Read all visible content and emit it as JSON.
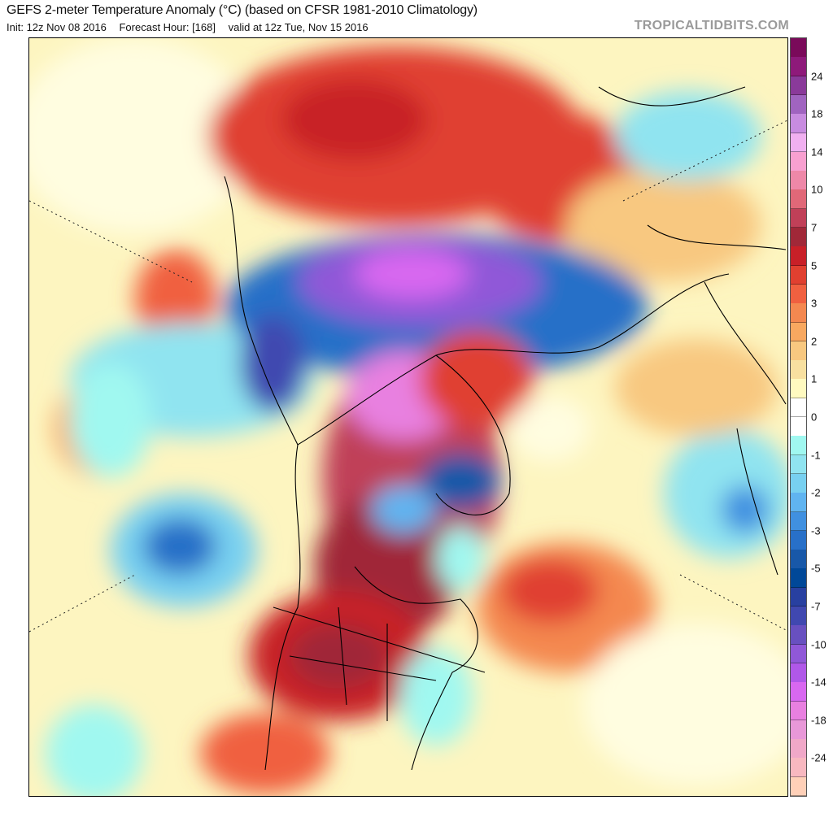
{
  "header": {
    "title": "GEFS 2-meter Temperature Anomaly (°C) (based on CFSR 1981-2010 Climatology)",
    "init": "Init: 12z Nov 08 2016",
    "forecast_hour": "Forecast Hour: [168]",
    "valid": "valid at 12z Tue, Nov 15 2016",
    "watermark": "TROPICALTIDBITS.COM"
  },
  "colorbar": {
    "colors": [
      "#7a0a5a",
      "#8e1a7a",
      "#8a3a9a",
      "#a064c0",
      "#c88ce0",
      "#f0b0f0",
      "#f8a0d0",
      "#ee88a8",
      "#e06878",
      "#c04058",
      "#a02838",
      "#c82028",
      "#e04030",
      "#f06040",
      "#f48850",
      "#f8a860",
      "#f8c880",
      "#f8e0a0",
      "#fffac0",
      "#ffffff",
      "#ffffff",
      "#a0f8f0",
      "#90e4f0",
      "#78d0f0",
      "#60b4f0",
      "#4090e0",
      "#2870c8",
      "#1858a8",
      "#004898",
      "#2840a0",
      "#4048b0",
      "#6850c0",
      "#9058d8",
      "#b058e8",
      "#d868f0",
      "#e880e0",
      "#e898d8",
      "#f0a8c8",
      "#f8b8c0",
      "#ffd0b8"
    ],
    "labels": [
      "24",
      "18",
      "14",
      "10",
      "7",
      "5",
      "3",
      "2",
      "1",
      "0",
      "-1",
      "-2",
      "-3",
      "-5",
      "-7",
      "-10",
      "-14",
      "-18",
      "-24"
    ]
  }
}
